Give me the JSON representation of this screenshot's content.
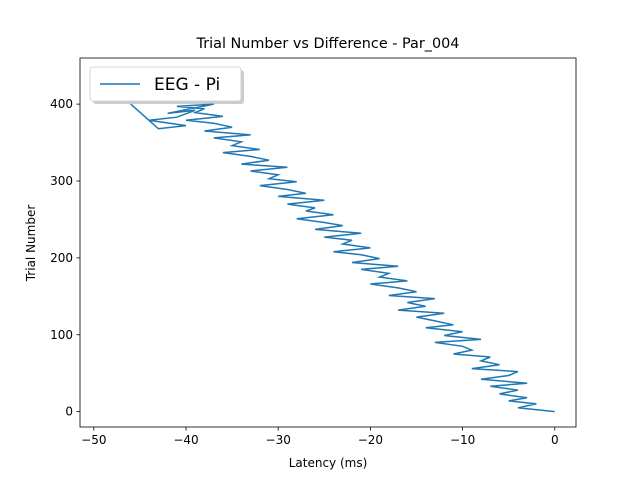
{
  "chart_data": {
    "type": "line",
    "title": "Trial Number vs Difference - Par_004",
    "xlabel": "Latency (ms)",
    "ylabel": "Trial Number",
    "xlim": [
      -51.5,
      2.3
    ],
    "ylim": [
      -20,
      460
    ],
    "xticks": [
      -50,
      -40,
      -30,
      -20,
      -10,
      0
    ],
    "yticks": [
      0,
      100,
      200,
      300,
      400
    ],
    "xtick_labels": [
      "−50",
      "−40",
      "−30",
      "−20",
      "−10",
      "0"
    ],
    "ytick_labels": [
      "0",
      "100",
      "200",
      "300",
      "400"
    ],
    "grid": false,
    "legend_position": "top-left",
    "series": [
      {
        "name": "EEG - Pi",
        "color": "#1f77b4",
        "x": [
          0,
          -4,
          -2,
          -5,
          -3,
          -6,
          -4,
          -7,
          -3,
          -8,
          -5,
          -4,
          -9,
          -6,
          -8,
          -7,
          -11,
          -9,
          -10,
          -13,
          -8,
          -12,
          -10,
          -14,
          -11,
          -13,
          -15,
          -12,
          -17,
          -14,
          -16,
          -13,
          -18,
          -15,
          -17,
          -20,
          -16,
          -19,
          -18,
          -21,
          -17,
          -22,
          -19,
          -21,
          -24,
          -20,
          -23,
          -22,
          -25,
          -21,
          -26,
          -23,
          -25,
          -28,
          -24,
          -27,
          -26,
          -29,
          -25,
          -30,
          -27,
          -29,
          -32,
          -28,
          -31,
          -30,
          -33,
          -29,
          -34,
          -31,
          -33,
          -36,
          -32,
          -35,
          -34,
          -37,
          -33,
          -38,
          -35,
          -37,
          -40,
          -36,
          -39,
          -38,
          -41,
          -37,
          -42,
          -39,
          -41,
          -44,
          -40,
          -43,
          -46
        ],
        "y": [
          0,
          5,
          10,
          14,
          18,
          23,
          28,
          33,
          37,
          42,
          47,
          52,
          56,
          61,
          66,
          71,
          75,
          80,
          85,
          90,
          94,
          99,
          104,
          109,
          113,
          118,
          123,
          128,
          132,
          137,
          142,
          147,
          151,
          156,
          161,
          166,
          170,
          175,
          180,
          185,
          189,
          194,
          199,
          204,
          208,
          213,
          218,
          223,
          227,
          232,
          237,
          242,
          246,
          251,
          256,
          261,
          265,
          270,
          275,
          280,
          284,
          289,
          294,
          299,
          303,
          308,
          313,
          318,
          322,
          327,
          332,
          337,
          341,
          346,
          351,
          356,
          360,
          365,
          370,
          375,
          379,
          384,
          389,
          394,
          397,
          400,
          388,
          392,
          383,
          379,
          372,
          368,
          400
        ]
      }
    ]
  }
}
